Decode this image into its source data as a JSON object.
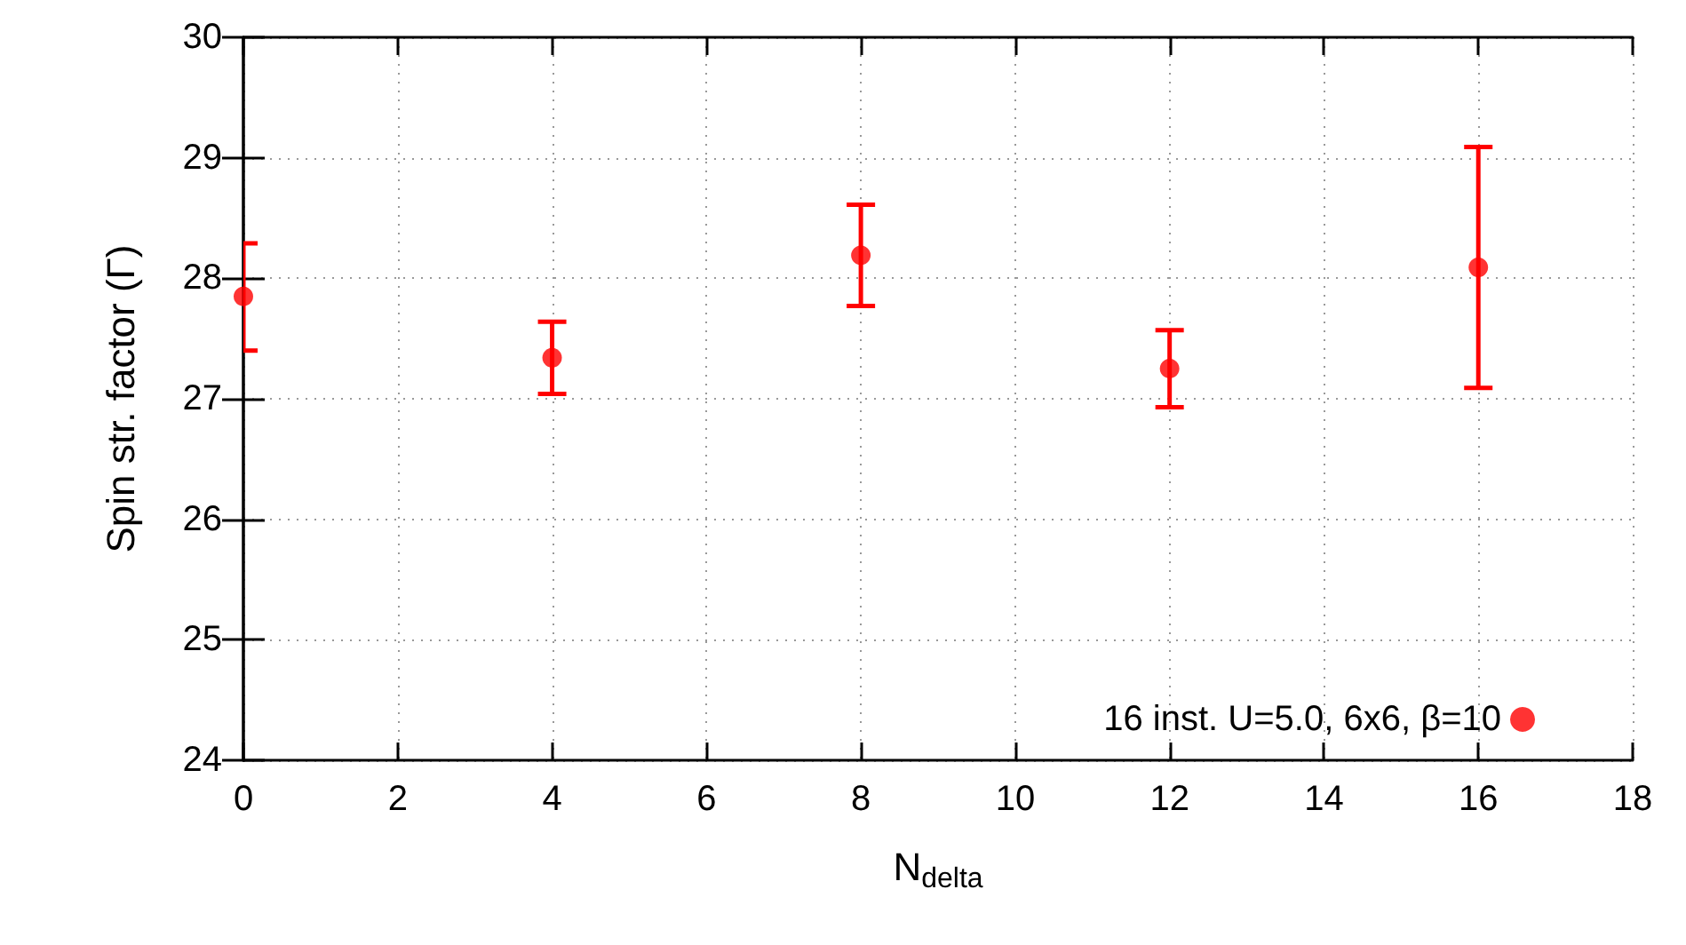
{
  "chart_data": {
    "type": "scatter",
    "xlabel": "N$_{delta}$",
    "ylabel": "Spin str. factor (Γ)",
    "x": [
      0,
      4,
      8,
      12,
      16
    ],
    "series": [
      {
        "name": "16 inst. U=5.0, 6x6, β=10",
        "color": "#ff0000",
        "values": [
          27.85,
          27.34,
          28.19,
          27.25,
          28.09
        ],
        "errors": [
          [
            27.4,
            28.29
          ],
          [
            27.04,
            27.64
          ],
          [
            27.77,
            28.61
          ],
          [
            26.93,
            27.57
          ],
          [
            27.09,
            29.09
          ]
        ]
      }
    ],
    "xlim": [
      0,
      18
    ],
    "xticks": [
      0,
      2,
      4,
      6,
      8,
      10,
      12,
      14,
      16,
      18
    ],
    "ylim": [
      24,
      30
    ],
    "yticks": [
      24,
      25,
      26,
      27,
      28,
      29,
      30
    ],
    "grid": true,
    "legend": "bottom right",
    "marker": "circle"
  }
}
